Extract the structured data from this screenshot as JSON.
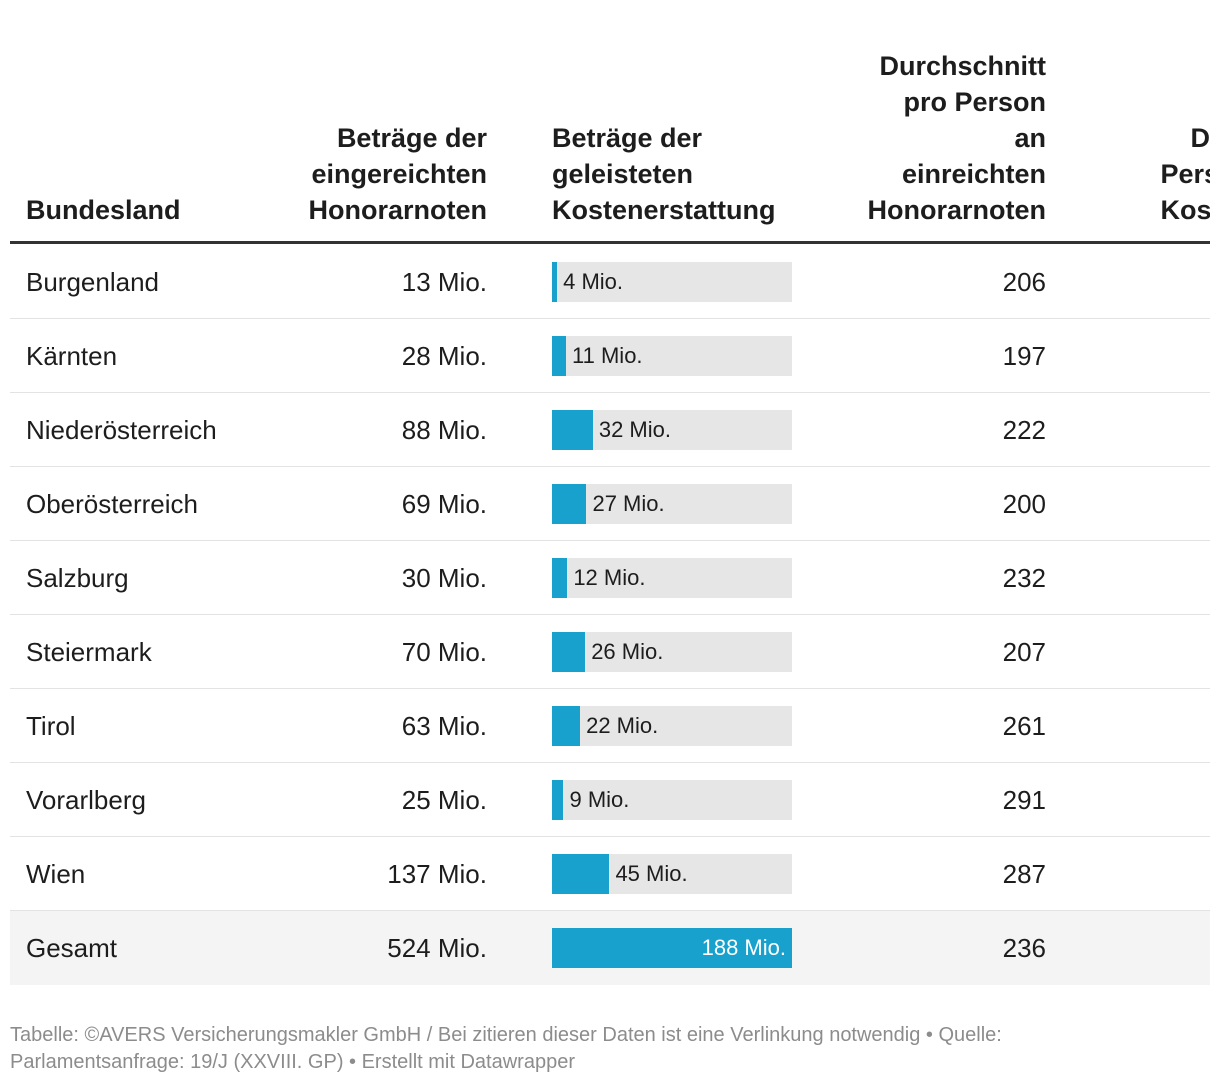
{
  "table": {
    "headers": [
      [
        "Bundesland"
      ],
      [
        "Beträge der",
        "eingereichten",
        "Honorarnoten"
      ],
      [
        "Beträge der",
        "geleisteten",
        "Kostenerstattung"
      ],
      [
        "Durchschnitt",
        "pro Person",
        "an",
        "einreichten",
        "Honorarnoten"
      ],
      [
        "Durc",
        "Person",
        "Kosten"
      ]
    ],
    "rows": [
      {
        "bundesland": "Burgenland",
        "eingereicht": "13 Mio.",
        "durchschnitt": "206"
      },
      {
        "bundesland": "Kärnten",
        "eingereicht": "28 Mio.",
        "durchschnitt": "197"
      },
      {
        "bundesland": "Niederösterreich",
        "eingereicht": "88 Mio.",
        "durchschnitt": "222"
      },
      {
        "bundesland": "Oberösterreich",
        "eingereicht": "69 Mio.",
        "durchschnitt": "200"
      },
      {
        "bundesland": "Salzburg",
        "eingereicht": "30 Mio.",
        "durchschnitt": "232"
      },
      {
        "bundesland": "Steiermark",
        "eingereicht": "70 Mio.",
        "durchschnitt": "207"
      },
      {
        "bundesland": "Tirol",
        "eingereicht": "63 Mio.",
        "durchschnitt": "261"
      },
      {
        "bundesland": "Vorarlberg",
        "eingereicht": "25 Mio.",
        "durchschnitt": "291"
      },
      {
        "bundesland": "Wien",
        "eingereicht": "137 Mio.",
        "durchschnitt": "287"
      },
      {
        "bundesland": "Gesamt",
        "eingereicht": "524 Mio.",
        "durchschnitt": "236"
      }
    ],
    "kostenerstattung": {
      "values": [
        4,
        11,
        32,
        27,
        12,
        26,
        22,
        9,
        45,
        188
      ],
      "value_labels": [
        "4 Mio.",
        "11 Mio.",
        "32 Mio.",
        "27 Mio.",
        "12 Mio.",
        "26 Mio.",
        "22 Mio.",
        "9 Mio.",
        "45 Mio.",
        "188 Mio."
      ],
      "color": "#18a1cd"
    }
  },
  "footer": "Tabelle: ©AVERS Versicherungsmakler GmbH / Bei zitieren dieser Daten ist eine Verlinkung notwendig • Quelle: Parlamentsanfrage: 19/J (XXVIII. GP) • Erstellt mit Datawrapper"
}
